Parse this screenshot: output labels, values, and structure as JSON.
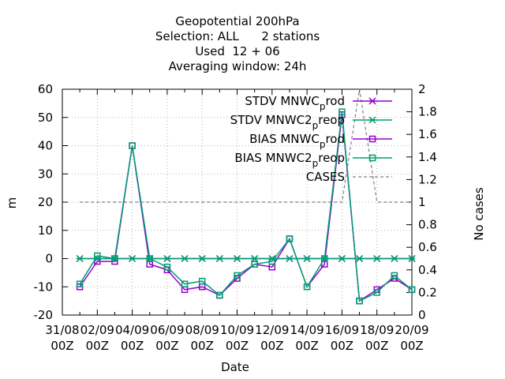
{
  "chart_data": {
    "type": "line",
    "title_lines": [
      "Geopotential 200hPa",
      "Selection: ALL      2 stations",
      "Used  12 + 06",
      "Averaging window: 24h"
    ],
    "xlabel": "Date",
    "ylabel": "m",
    "y2label": "No cases",
    "ylim": [
      -20,
      60
    ],
    "y2lim": [
      0,
      2
    ],
    "yticks": [
      "-20",
      "-10",
      "0",
      "10",
      "20",
      "30",
      "40",
      "50",
      "60"
    ],
    "y2ticks": [
      "0",
      "0.2",
      "0.4",
      "0.6",
      "0.8",
      "1",
      "1.2",
      "1.4",
      "1.6",
      "1.8",
      "2"
    ],
    "xticks": [
      {
        "d": "31/08",
        "h": "00Z"
      },
      {
        "d": "02/09",
        "h": "00Z"
      },
      {
        "d": "04/09",
        "h": "00Z"
      },
      {
        "d": "06/09",
        "h": "00Z"
      },
      {
        "d": "08/09",
        "h": "00Z"
      },
      {
        "d": "10/09",
        "h": "00Z"
      },
      {
        "d": "12/09",
        "h": "00Z"
      },
      {
        "d": "14/09",
        "h": "00Z"
      },
      {
        "d": "16/09",
        "h": "00Z"
      },
      {
        "d": "18/09",
        "h": "00Z"
      },
      {
        "d": "20/09",
        "h": "00Z"
      }
    ],
    "x": [
      "2023-09-01 00Z",
      "2023-09-02 00Z",
      "2023-09-03 00Z",
      "2023-09-04 00Z",
      "2023-09-05 00Z",
      "2023-09-06 00Z",
      "2023-09-07 00Z",
      "2023-09-08 00Z",
      "2023-09-09 00Z",
      "2023-09-10 00Z",
      "2023-09-11 00Z",
      "2023-09-12 00Z",
      "2023-09-13 00Z",
      "2023-09-14 00Z",
      "2023-09-15 00Z",
      "2023-09-16 00Z",
      "2023-09-17 00Z",
      "2023-09-18 00Z",
      "2023-09-19 00Z",
      "2023-09-20 00Z"
    ],
    "grid": true,
    "legend_position": "top-right",
    "series": [
      {
        "name": "STDV MNWC_prod",
        "color": "#9400d3",
        "marker": "star",
        "axis": "y1",
        "values": [
          0,
          0,
          0,
          0,
          0,
          0,
          0,
          0,
          0,
          0,
          0,
          0,
          0,
          0,
          0,
          0,
          0,
          0,
          0,
          0
        ]
      },
      {
        "name": "STDV MNWC2_preop",
        "color": "#009e73",
        "marker": "star",
        "axis": "y1",
        "values": [
          0,
          0,
          0,
          0,
          0,
          0,
          0,
          0,
          0,
          0,
          0,
          0,
          0,
          0,
          0,
          0,
          0,
          0,
          0,
          0
        ]
      },
      {
        "name": "BIAS MNWC_prod",
        "color": "#9400d3",
        "marker": "square",
        "axis": "y1",
        "values": [
          -10,
          -1,
          -1,
          40,
          -2,
          -4,
          -11,
          -10,
          -13,
          -7,
          -2,
          -3,
          7,
          -10,
          -2,
          51,
          -15,
          -11,
          -7,
          -11
        ]
      },
      {
        "name": "BIAS MNWC2_preop",
        "color": "#009e73",
        "marker": "square",
        "axis": "y1",
        "values": [
          -9,
          1,
          0,
          40,
          0,
          -3,
          -9,
          -8,
          -13,
          -6,
          -2,
          -1,
          7,
          -10,
          0,
          52,
          -15,
          -12,
          -6,
          -11
        ]
      },
      {
        "name": "CASES",
        "color": "#808080",
        "marker": "none",
        "dash": true,
        "axis": "y2",
        "values": [
          1,
          1,
          1,
          1,
          1,
          1,
          1,
          1,
          1,
          1,
          1,
          1,
          1,
          1,
          1,
          1,
          2,
          1,
          1,
          1
        ]
      }
    ]
  }
}
